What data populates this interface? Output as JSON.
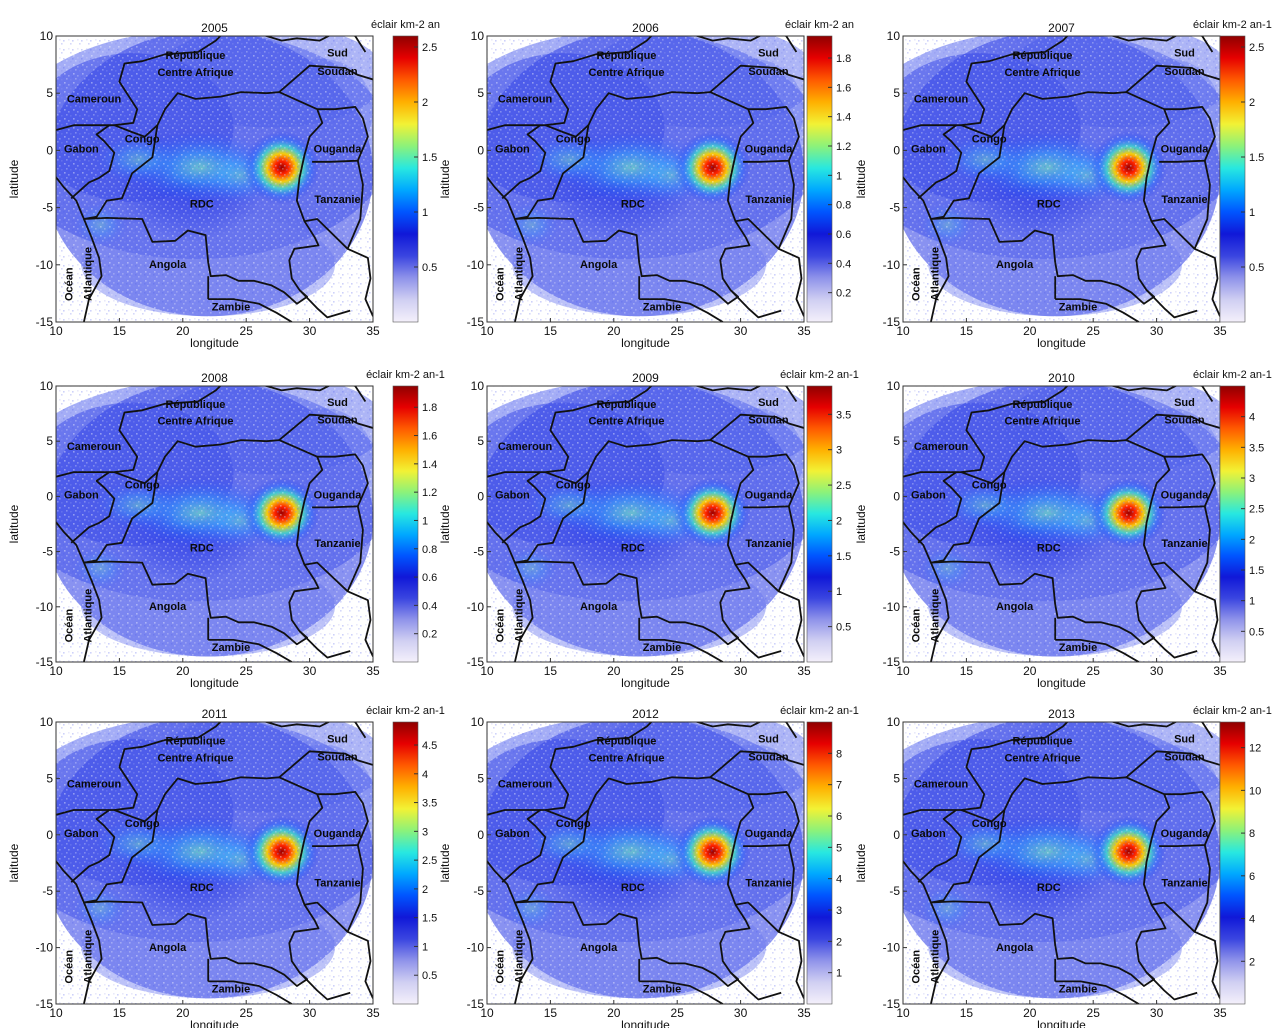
{
  "figure": {
    "axis_labels": {
      "x": "longitude",
      "y": "latitude"
    },
    "colorbar_unit_label": "éclair km⁻² an⁻¹",
    "x_ticks": [
      "10",
      "15",
      "20",
      "25",
      "30",
      "35"
    ],
    "y_ticks": [
      "10",
      "5",
      "0",
      "-5",
      "-10",
      "-15"
    ],
    "country_labels": [
      "République",
      "Centre Afrique",
      "Sud",
      "Soudan",
      "Cameroun",
      "Congo",
      "Gabon",
      "Ouganda",
      "RDC",
      "Tanzanie",
      "Océan",
      "Atlantique",
      "Angola",
      "Zambie"
    ],
    "colormap": [
      "#f4f0fb",
      "#d0cff2",
      "#8f93ea",
      "#3a45e0",
      "#1018d8",
      "#0055ff",
      "#00a8ff",
      "#28e8e0",
      "#8cf27a",
      "#f2f235",
      "#ffb000",
      "#ff5a00",
      "#e60000",
      "#8f0000"
    ],
    "hotspot_location": {
      "longitude": 27.8,
      "latitude": -1.5
    }
  },
  "chart_data": [
    {
      "type": "heatmap",
      "title": "2005",
      "xlabel": "longitude",
      "ylabel": "latitude",
      "xlim": [
        10,
        35
      ],
      "ylim": [
        -15,
        10
      ],
      "colorbar": {
        "label": "éclair km-2 an",
        "ticks": [
          "0.5",
          "1",
          "1.5",
          "2",
          "2.5"
        ],
        "range": [
          0,
          2.6
        ]
      },
      "hotspot_value": 2.5
    },
    {
      "type": "heatmap",
      "title": "2006",
      "xlabel": "longitude",
      "ylabel": "latitude",
      "xlim": [
        10,
        35
      ],
      "ylim": [
        -15,
        10
      ],
      "colorbar": {
        "label": "éclair km-2 an",
        "ticks": [
          "0.2",
          "0.4",
          "0.6",
          "0.8",
          "1",
          "1.2",
          "1.4",
          "1.6",
          "1.8"
        ],
        "range": [
          0,
          1.95
        ]
      },
      "hotspot_value": 1.8
    },
    {
      "type": "heatmap",
      "title": "2007",
      "xlabel": "longitude",
      "ylabel": "latitude",
      "xlim": [
        10,
        35
      ],
      "ylim": [
        -15,
        10
      ],
      "colorbar": {
        "label": "éclair km-2 an-1",
        "ticks": [
          "0.5",
          "1",
          "1.5",
          "2",
          "2.5"
        ],
        "range": [
          0,
          2.6
        ]
      },
      "hotspot_value": 2.5
    },
    {
      "type": "heatmap",
      "title": "2008",
      "xlabel": "longitude",
      "ylabel": "latitude",
      "xlim": [
        10,
        35
      ],
      "ylim": [
        -15,
        10
      ],
      "colorbar": {
        "label": "éclair km-2 an-1",
        "ticks": [
          "0.2",
          "0.4",
          "0.6",
          "0.8",
          "1",
          "1.2",
          "1.4",
          "1.6",
          "1.8"
        ],
        "range": [
          0,
          1.95
        ]
      },
      "hotspot_value": 1.8
    },
    {
      "type": "heatmap",
      "title": "2009",
      "xlabel": "longitude",
      "ylabel": "latitude",
      "xlim": [
        10,
        35
      ],
      "ylim": [
        -15,
        10
      ],
      "colorbar": {
        "label": "éclair km-2 an-1",
        "ticks": [
          "0.5",
          "1",
          "1.5",
          "2",
          "2.5",
          "3",
          "3.5"
        ],
        "range": [
          0,
          3.9
        ]
      },
      "hotspot_value": 3.5
    },
    {
      "type": "heatmap",
      "title": "2010",
      "xlabel": "longitude",
      "ylabel": "latitude",
      "xlim": [
        10,
        35
      ],
      "ylim": [
        -15,
        10
      ],
      "colorbar": {
        "label": "éclair km-2 an-1",
        "ticks": [
          "0.5",
          "1",
          "1.5",
          "2",
          "2.5",
          "3",
          "3.5",
          "4"
        ],
        "range": [
          0,
          4.5
        ]
      },
      "hotspot_value": 4
    },
    {
      "type": "heatmap",
      "title": "2011",
      "xlabel": "longitude",
      "ylabel": "latitude",
      "xlim": [
        10,
        35
      ],
      "ylim": [
        -15,
        10
      ],
      "colorbar": {
        "label": "éclair km-2 an-1",
        "ticks": [
          "0.5",
          "1",
          "1.5",
          "2",
          "2.5",
          "3",
          "3.5",
          "4",
          "4.5"
        ],
        "range": [
          0,
          4.9
        ]
      },
      "hotspot_value": 4.5
    },
    {
      "type": "heatmap",
      "title": "2012",
      "xlabel": "longitude",
      "ylabel": "latitude",
      "xlim": [
        10,
        35
      ],
      "ylim": [
        -15,
        10
      ],
      "colorbar": {
        "label": "éclair km-2 an-1",
        "ticks": [
          "1",
          "2",
          "3",
          "4",
          "5",
          "6",
          "7",
          "8"
        ],
        "range": [
          0,
          9
        ]
      },
      "hotspot_value": 8
    },
    {
      "type": "heatmap",
      "title": "2013",
      "xlabel": "longitude",
      "ylabel": "latitude",
      "xlim": [
        10,
        35
      ],
      "ylim": [
        -15,
        10
      ],
      "colorbar": {
        "label": "éclair km-2 an-1",
        "ticks": [
          "2",
          "4",
          "6",
          "8",
          "10",
          "12"
        ],
        "range": [
          0,
          13.2
        ]
      },
      "hotspot_value": 12
    }
  ]
}
